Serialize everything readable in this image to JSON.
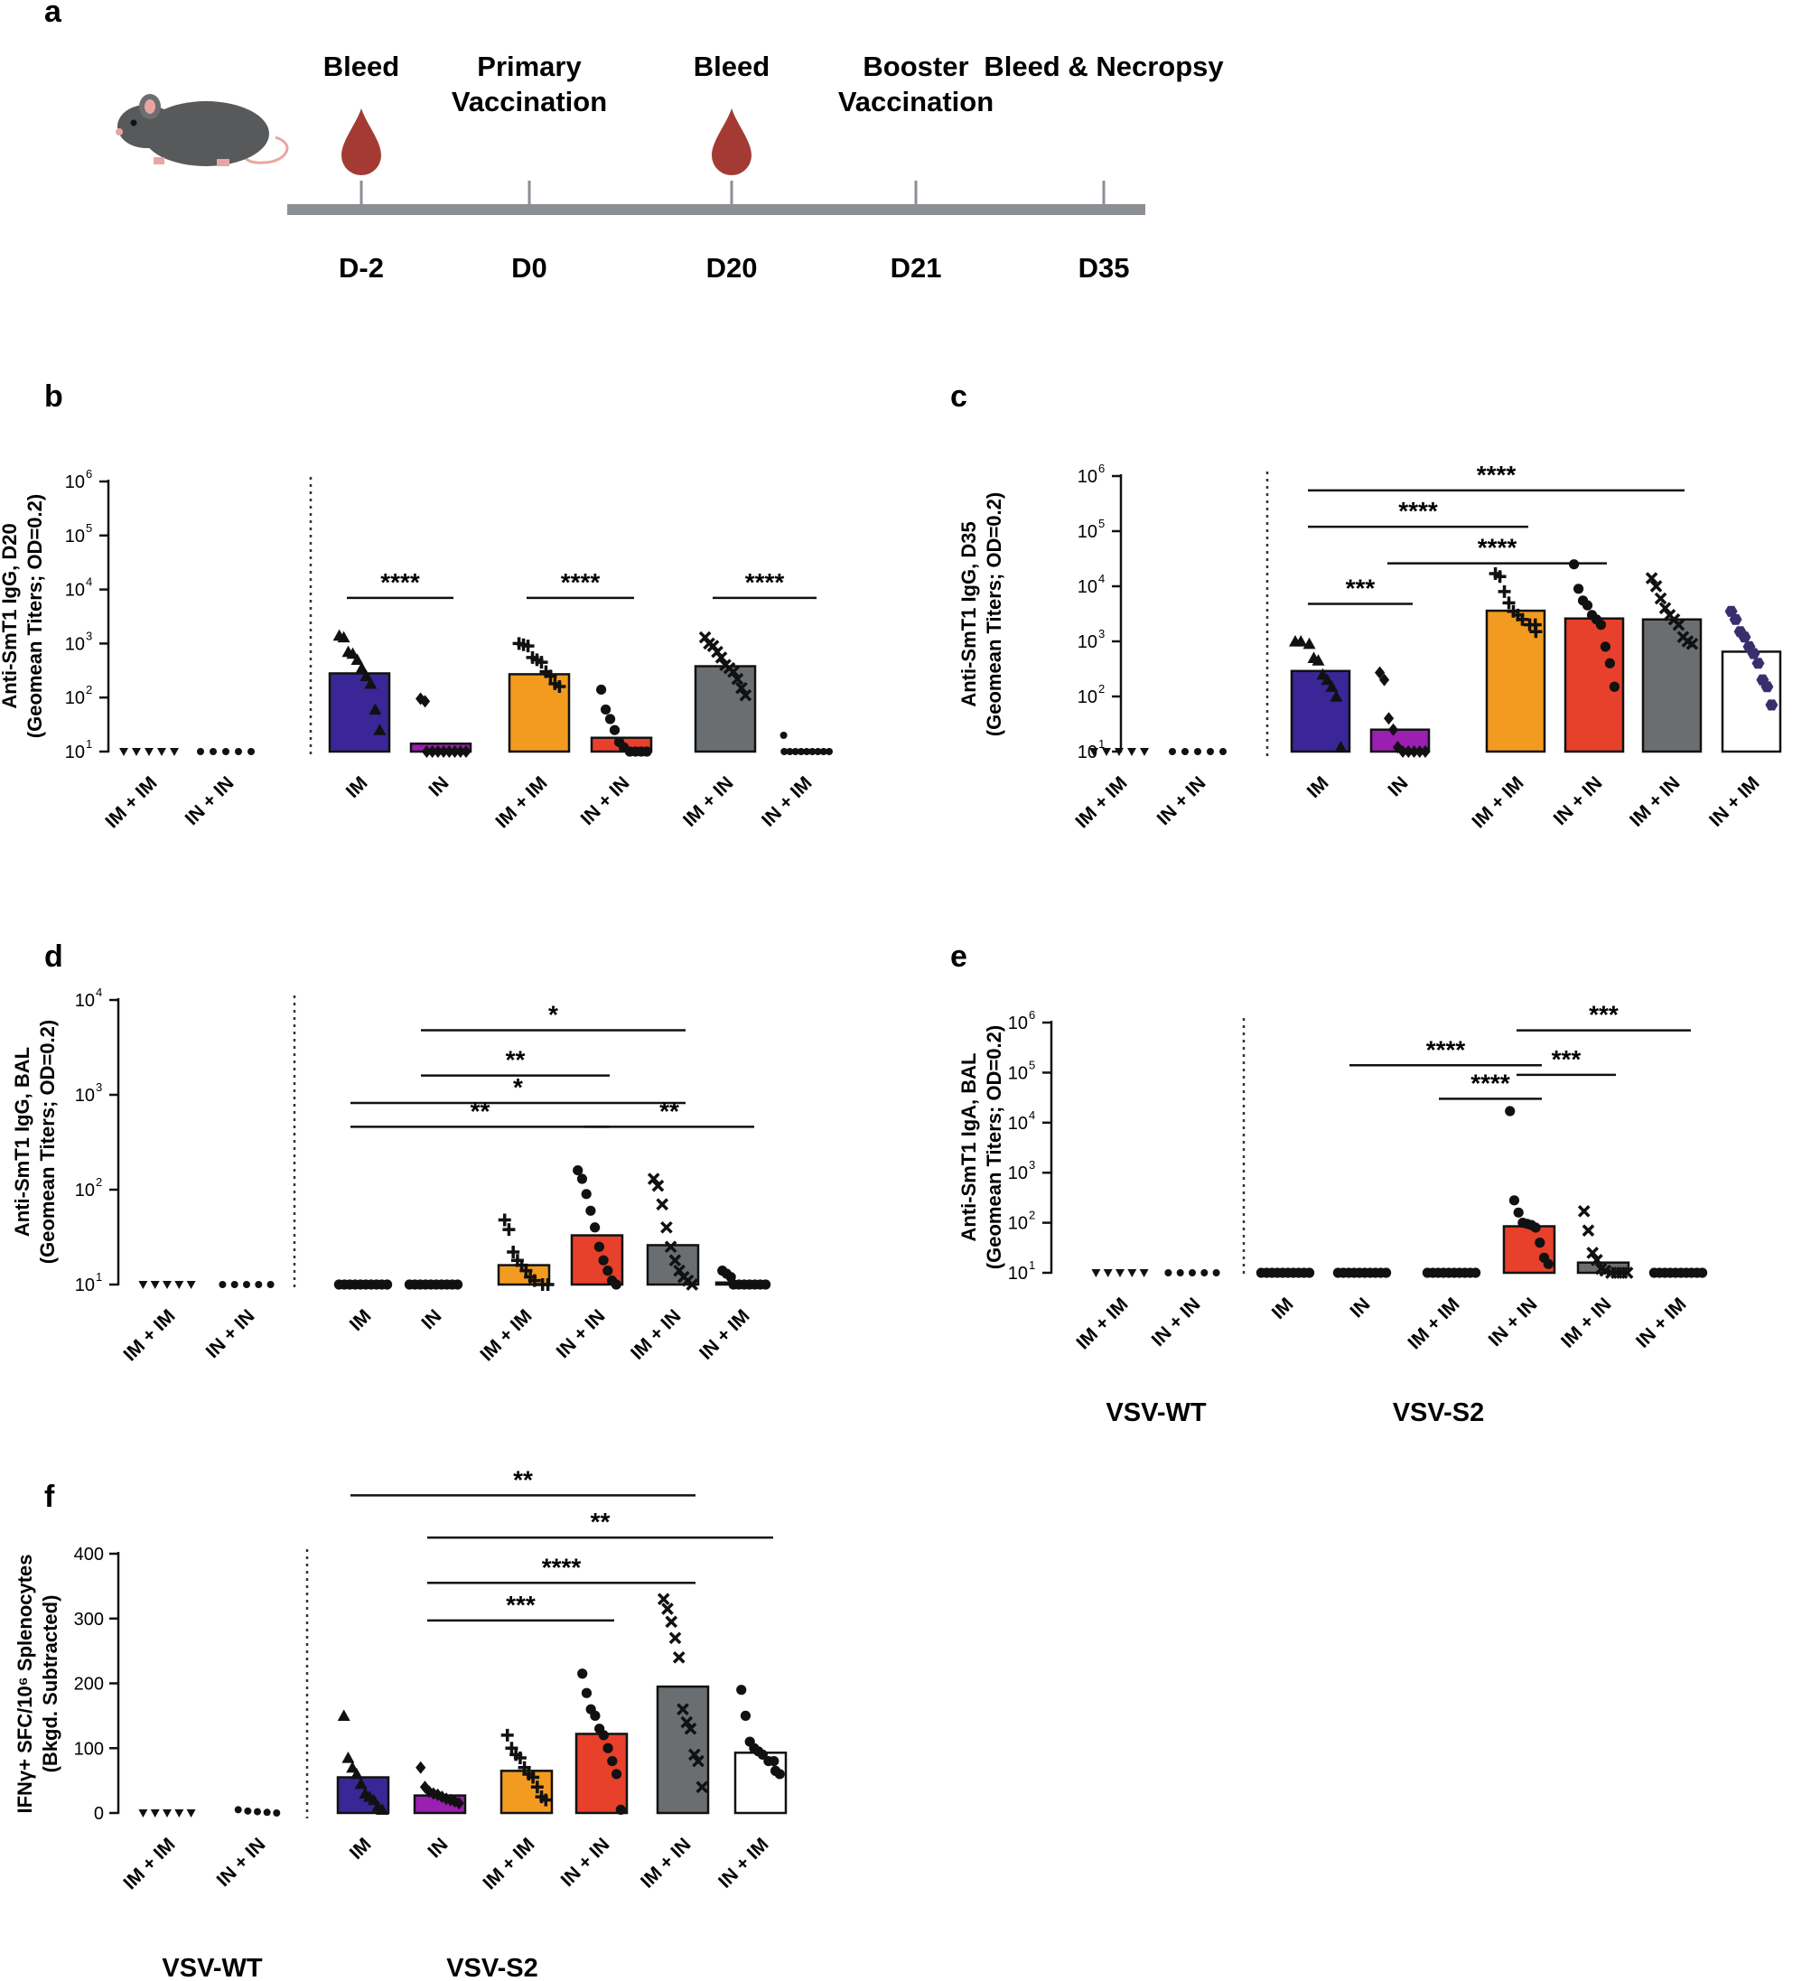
{
  "timeline": {
    "letter": "a",
    "events": [
      {
        "top": "Bleed",
        "day": "D-2",
        "drop": true
      },
      {
        "top": "Primary\nVaccination",
        "day": "D0",
        "drop": false
      },
      {
        "top": "Bleed",
        "day": "D20",
        "drop": true
      },
      {
        "top": "Booster\nVaccination",
        "day": "D21",
        "drop": false
      },
      {
        "top": "Bleed & Necropsy",
        "day": "D35",
        "drop": false
      }
    ],
    "colors": {
      "bar": "#8c8f93",
      "drop": "#a33b34",
      "mouse": "#58595b"
    }
  },
  "colors": {
    "IM": "#3a2696",
    "IN": "#9b1fb0",
    "IM + IM": "#f39b21",
    "IN + IN": "#e7402b",
    "IM + IN": "#6b6e70",
    "IN + IM": "#ffffff"
  },
  "group_labels": {
    "wt": "VSV-WT",
    "s2": "VSV-S2"
  },
  "chart_data": [
    {
      "id": "b",
      "letter": "b",
      "type": "bar",
      "scale": "log",
      "ylabel": [
        "Anti-SmT1  IgG, D20",
        "(Geomean Titers; OD=0.2)"
      ],
      "ylim": [
        10,
        1000000
      ],
      "yticks": [
        {
          "base": "10",
          "exp": "1"
        },
        {
          "base": "10",
          "exp": "2"
        },
        {
          "base": "10",
          "exp": "3"
        },
        {
          "base": "10",
          "exp": "4"
        },
        {
          "base": "10",
          "exp": "5"
        },
        {
          "base": "10",
          "exp": "6"
        }
      ],
      "categories": [
        "IM + IM",
        "IN + IN",
        "IM",
        "IN",
        "IM + IM",
        "IN + IN",
        "IM + IN",
        "IN + IM"
      ],
      "values": [
        null,
        null,
        280,
        14,
        270,
        18,
        380,
        null
      ],
      "markers": [
        "tri-down",
        "circle",
        "tri",
        "diamond",
        "plus",
        "circle",
        "x",
        "circle"
      ],
      "points": [
        [
          10,
          10,
          10,
          10,
          10
        ],
        [
          10,
          10,
          10,
          10,
          10
        ],
        [
          1400,
          1300,
          700,
          650,
          500,
          350,
          250,
          180,
          60,
          25
        ],
        [
          95,
          85,
          10,
          10,
          10,
          10,
          10,
          10,
          10,
          10
        ],
        [
          1000,
          950,
          900,
          550,
          500,
          450,
          300,
          250,
          180,
          160
        ],
        [
          140,
          60,
          40,
          25,
          15,
          12,
          10,
          10,
          10,
          10
        ],
        [
          1300,
          1000,
          900,
          700,
          550,
          400,
          350,
          300,
          220,
          150,
          110
        ],
        [
          20,
          10,
          10,
          10,
          10,
          10,
          10,
          10,
          10,
          10
        ]
      ],
      "significance": [
        {
          "from": 2,
          "to": 3,
          "label": "****",
          "value": 7000
        },
        {
          "from": 4,
          "to": 5,
          "label": "****",
          "value": 7000
        },
        {
          "from": 6,
          "to": 7,
          "label": "****",
          "value": 7000
        }
      ]
    },
    {
      "id": "c",
      "letter": "c",
      "type": "bar",
      "scale": "log",
      "ylabel": [
        "Anti-SmT1  IgG, D35",
        "(Geomean Titers; OD=0.2)"
      ],
      "ylim": [
        10,
        1000000
      ],
      "yticks": [
        {
          "base": "10",
          "exp": "1"
        },
        {
          "base": "10",
          "exp": "2"
        },
        {
          "base": "10",
          "exp": "3"
        },
        {
          "base": "10",
          "exp": "4"
        },
        {
          "base": "10",
          "exp": "5"
        },
        {
          "base": "10",
          "exp": "6"
        }
      ],
      "categories": [
        "IM + IM",
        "IN + IN",
        "IM",
        "IN",
        "IM + IM",
        "IN + IN",
        "IM + IN",
        "IN + IM"
      ],
      "values": [
        null,
        null,
        290,
        25,
        3600,
        2600,
        2500,
        650
      ],
      "markers": [
        "tri-down",
        "circle",
        "tri",
        "diamond",
        "plus",
        "circle",
        "x",
        "hex"
      ],
      "points": [
        [
          10,
          10,
          10,
          10,
          10
        ],
        [
          10,
          10,
          10,
          10,
          10
        ],
        [
          1000,
          1000,
          900,
          500,
          450,
          250,
          200,
          150,
          100,
          12
        ],
        [
          270,
          200,
          40,
          25,
          12,
          10,
          10,
          10,
          10,
          10
        ],
        [
          17000,
          15000,
          8000,
          5000,
          3500,
          3000,
          2500,
          2000,
          2000,
          1500
        ],
        [
          25000,
          9000,
          5500,
          4500,
          3000,
          2500,
          2000,
          800,
          400,
          150
        ],
        [
          14000,
          10000,
          6000,
          4000,
          3000,
          2500,
          2000,
          1200,
          1000,
          900
        ],
        [
          3500,
          2500,
          1500,
          1200,
          800,
          600,
          400,
          200,
          150,
          70
        ]
      ],
      "significance": [
        {
          "from": 2,
          "to": 6,
          "label": "****",
          "value": 550000
        },
        {
          "from": 2,
          "to": 4,
          "label": "****",
          "value": 120000
        },
        {
          "from": 3,
          "to": 5,
          "label": "****",
          "value": 26000
        },
        {
          "from": 2,
          "to": 3,
          "label": "***",
          "value": 4800
        }
      ]
    },
    {
      "id": "d",
      "letter": "d",
      "type": "bar",
      "scale": "log",
      "ylabel": [
        "Anti-SmT1  IgG, BAL",
        "(Geomean Titers; OD=0.2)"
      ],
      "ylim": [
        10,
        10000
      ],
      "yticks": [
        {
          "base": "10",
          "exp": "1"
        },
        {
          "base": "10",
          "exp": "2"
        },
        {
          "base": "10",
          "exp": "3"
        },
        {
          "base": "10",
          "exp": "4"
        }
      ],
      "categories": [
        "IM + IM",
        "IN + IN",
        "IM",
        "IN",
        "IM + IM",
        "IN + IN",
        "IM + IN",
        "IN + IM"
      ],
      "values": [
        null,
        null,
        10,
        10,
        16,
        33,
        26,
        10.5
      ],
      "markers": [
        "tri-down",
        "circle",
        "circle",
        "circle",
        "plus",
        "circle",
        "x",
        "circle"
      ],
      "points": [
        [
          10,
          10,
          10,
          10,
          10
        ],
        [
          10,
          10,
          10,
          10,
          10
        ],
        [
          10,
          10,
          10,
          10,
          10,
          10,
          10,
          10,
          10,
          10
        ],
        [
          10,
          10,
          10,
          10,
          10,
          10,
          10,
          10,
          10,
          10
        ],
        [
          48,
          38,
          22,
          18,
          16,
          14,
          12,
          11,
          10,
          10
        ],
        [
          160,
          130,
          90,
          60,
          40,
          25,
          18,
          14,
          11,
          10
        ],
        [
          130,
          110,
          70,
          40,
          25,
          18,
          14,
          12,
          11,
          10
        ],
        [
          14,
          13,
          12,
          10,
          10,
          10,
          10,
          10,
          10,
          10
        ]
      ],
      "significance": [
        {
          "from": 3,
          "to": 6,
          "label": "*",
          "value": 4800
        },
        {
          "from": 3,
          "to": 5,
          "label": "**",
          "value": 1600
        },
        {
          "from": 2,
          "to": 6,
          "label": "*",
          "value": 820
        },
        {
          "from": 2,
          "to": 5,
          "label": "**",
          "value": 460
        },
        {
          "from": 5,
          "to": 7,
          "label": "**",
          "value": 460
        }
      ]
    },
    {
      "id": "e",
      "letter": "e",
      "type": "bar",
      "scale": "log",
      "ylabel": [
        "Anti-SmT1 IgA, BAL",
        "(Geomean Titers; OD=0.2)"
      ],
      "ylim": [
        10,
        1000000
      ],
      "yticks": [
        {
          "base": "10",
          "exp": "1"
        },
        {
          "base": "10",
          "exp": "2"
        },
        {
          "base": "10",
          "exp": "3"
        },
        {
          "base": "10",
          "exp": "4"
        },
        {
          "base": "10",
          "exp": "5"
        },
        {
          "base": "10",
          "exp": "6"
        }
      ],
      "categories": [
        "IM + IM",
        "IN + IN",
        "IM",
        "IN",
        "IM + IM",
        "IN + IN",
        "IM + IN",
        "IN + IM"
      ],
      "values": [
        null,
        null,
        9.5,
        10,
        10,
        85,
        16,
        10
      ],
      "markers": [
        "tri-down",
        "circle",
        "circle",
        "circle",
        "circle",
        "circle",
        "x",
        "circle"
      ],
      "points": [
        [
          10,
          10,
          10,
          10,
          10
        ],
        [
          10,
          10,
          10,
          10,
          10
        ],
        [
          10,
          10,
          10,
          10,
          10,
          10,
          10,
          10,
          10,
          10
        ],
        [
          10,
          10,
          10,
          10,
          10,
          10,
          10,
          10,
          10,
          10
        ],
        [
          10,
          10,
          10,
          10,
          10,
          10,
          10,
          10,
          10,
          10
        ],
        [
          17000,
          280,
          160,
          100,
          95,
          90,
          80,
          40,
          20,
          15
        ],
        [
          170,
          70,
          25,
          18,
          12,
          11,
          10,
          10,
          10,
          10
        ],
        [
          10,
          10,
          10,
          10,
          10,
          10,
          10,
          10,
          10,
          10
        ]
      ],
      "significance": [
        {
          "from": 5,
          "to": 7,
          "label": "***",
          "value": 700000
        },
        {
          "from": 3,
          "to": 5,
          "label": "****",
          "value": 140000
        },
        {
          "from": 5,
          "to": 6,
          "label": "***",
          "value": 90000
        },
        {
          "from": 4,
          "to": 5,
          "label": "****",
          "value": 30000
        }
      ]
    },
    {
      "id": "f",
      "letter": "f",
      "type": "bar",
      "scale": "linear",
      "ylabel": [
        "IFNγ+ SFC/10⁶ Splenocytes",
        "(Bkgd. Subtracted)"
      ],
      "ylim": [
        0,
        400
      ],
      "yticks": [
        {
          "base": "0",
          "exp": ""
        },
        {
          "base": "100",
          "exp": ""
        },
        {
          "base": "200",
          "exp": ""
        },
        {
          "base": "300",
          "exp": ""
        },
        {
          "base": "400",
          "exp": ""
        }
      ],
      "categories": [
        "IM + IM",
        "IN + IN",
        "IM",
        "IN",
        "IM + IM",
        "IN + IN",
        "IM + IN",
        "IN + IM"
      ],
      "values": [
        null,
        null,
        55,
        27,
        65,
        122,
        195,
        93
      ],
      "markers": [
        "tri-down",
        "circle",
        "tri",
        "diamond",
        "plus",
        "circle",
        "x",
        "circle"
      ],
      "points": [
        [
          0,
          0,
          0,
          0,
          0
        ],
        [
          5,
          3,
          2,
          1,
          0
        ],
        [
          150,
          85,
          70,
          60,
          45,
          30,
          25,
          20,
          10,
          5
        ],
        [
          70,
          40,
          33,
          30,
          28,
          25,
          22,
          20,
          18,
          15
        ],
        [
          120,
          100,
          90,
          85,
          70,
          60,
          55,
          40,
          25,
          20
        ],
        [
          215,
          185,
          160,
          150,
          130,
          120,
          100,
          80,
          60,
          5
        ],
        [
          330,
          315,
          295,
          270,
          240,
          160,
          140,
          130,
          90,
          80,
          40
        ],
        [
          190,
          150,
          110,
          100,
          95,
          90,
          80,
          80,
          65,
          60
        ]
      ],
      "significance": [
        {
          "from": 2,
          "to": 6,
          "label": "**",
          "value": 490
        },
        {
          "from": 3,
          "to": 7,
          "label": "**",
          "value": 425
        },
        {
          "from": 3,
          "to": 6,
          "label": "****",
          "value": 355
        },
        {
          "from": 3,
          "to": 5,
          "label": "***",
          "value": 297
        }
      ]
    }
  ]
}
